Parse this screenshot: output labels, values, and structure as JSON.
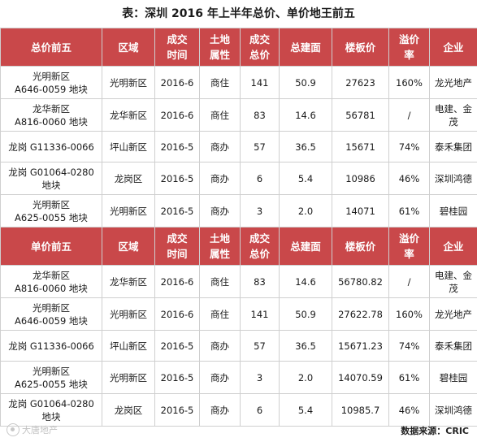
{
  "title": "表：深圳 2016 年上半年总价、单价地王前五",
  "total_section": {
    "headers": [
      "总价前五",
      "区域",
      "成交\n时间",
      "土地\n属性",
      "成交\n总价",
      "总建面",
      "楼板价",
      "溢价\n率",
      "企业"
    ],
    "rows": [
      [
        "光明新区\nA646-0059 地块",
        "光明新区",
        "2016-6",
        "商住",
        "141",
        "50.9",
        "27623",
        "160%",
        "龙光地产"
      ],
      [
        "龙华新区\nA816-0060 地块",
        "龙华新区",
        "2016-6",
        "商住",
        "83",
        "14.6",
        "56781",
        "/",
        "电建、金茂"
      ],
      [
        "龙岗 G11336-0066",
        "坪山新区",
        "2016-5",
        "商办",
        "57",
        "36.5",
        "15671",
        "74%",
        "泰禾集团"
      ],
      [
        "龙岗 G01064-0280\n地块",
        "龙岗区",
        "2016-5",
        "商办",
        "6",
        "5.4",
        "10986",
        "46%",
        "深圳鸿德"
      ],
      [
        "光明新区\nA625-0055 地块",
        "光明新区",
        "2016-5",
        "商办",
        "3",
        "2.0",
        "14071",
        "61%",
        "碧桂园"
      ]
    ]
  },
  "unit_section": {
    "headers": [
      "单价前五",
      "区域",
      "成交\n时间",
      "土地\n属性",
      "成交\n总价",
      "总建面",
      "楼板价",
      "溢价\n率",
      "企业"
    ],
    "rows": [
      [
        "龙华新区\nA816-0060 地块",
        "龙华新区",
        "2016-6",
        "商住",
        "83",
        "14.6",
        "56780.82",
        "/",
        "电建、金茂"
      ],
      [
        "光明新区\nA646-0059 地块",
        "光明新区",
        "2016-6",
        "商住",
        "141",
        "50.9",
        "27622.78",
        "160%",
        "龙光地产"
      ],
      [
        "龙岗 G11336-0066",
        "坪山新区",
        "2016-5",
        "商办",
        "57",
        "36.5",
        "15671.23",
        "74%",
        "泰禾集团"
      ],
      [
        "光明新区\nA625-0055 地块",
        "光明新区",
        "2016-5",
        "商办",
        "3",
        "2.0",
        "14070.59",
        "61%",
        "碧桂园"
      ],
      [
        "龙岗 G01064-0280\n地块",
        "龙岗区",
        "2016-5",
        "商办",
        "6",
        "5.4",
        "10985.7",
        "46%",
        "深圳鸿德"
      ]
    ]
  },
  "footer": {
    "source": "数据来源：CRIC",
    "watermark": "大唐地产"
  },
  "colors": {
    "header_bg": "#c9484a",
    "header_text": "#ffffff",
    "border": "#cfcfcf"
  }
}
